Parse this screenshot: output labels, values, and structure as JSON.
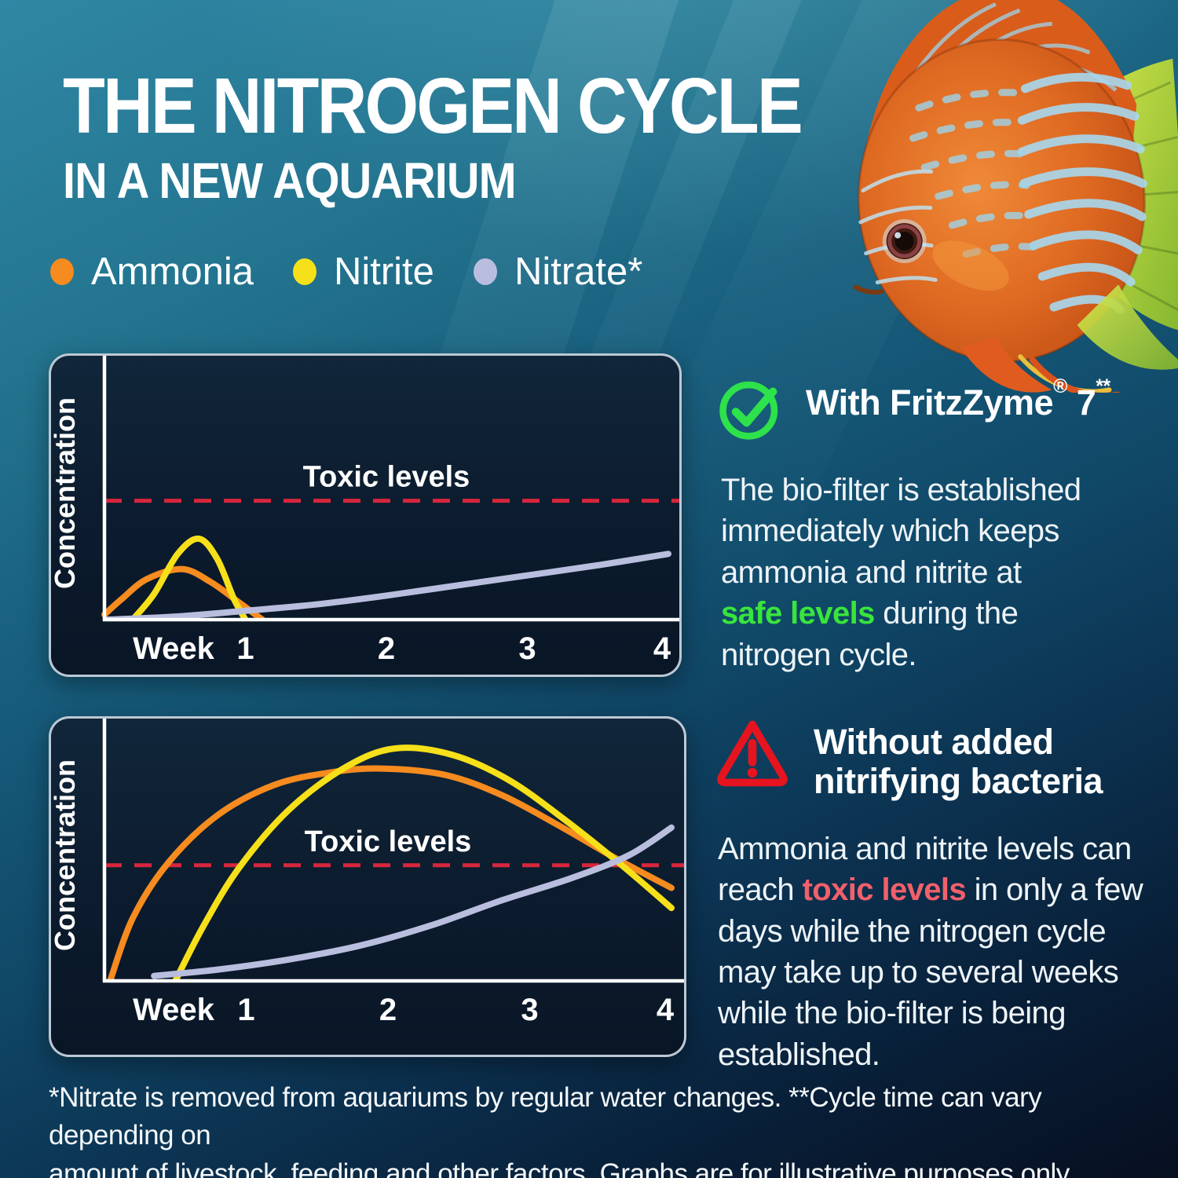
{
  "title": {
    "line1": "THE NITROGEN CYCLE",
    "line2": "IN A NEW AQUARIUM"
  },
  "legend": [
    {
      "label": "Ammonia",
      "color": "#f68b1f"
    },
    {
      "label": "Nitrite",
      "color": "#f6e01a"
    },
    {
      "label": "Nitrate*",
      "color": "#b9bede"
    }
  ],
  "colors": {
    "toxic_line": "#d7263d",
    "safe_green": "#39e53c",
    "icon_green": "#2de24a",
    "icon_red": "#e6141f",
    "toxic_text_red": "#f2606a",
    "axis_white": "#ffffff"
  },
  "chart_data": [
    {
      "type": "line",
      "title": "",
      "xlabel": "Week",
      "ylabel": "Concentration",
      "x_ticks": [
        "1",
        "2",
        "3",
        "4"
      ],
      "x_range": [
        0,
        4
      ],
      "grid": false,
      "toxic_label": "Toxic levels",
      "toxic_level": 0.47,
      "series": [
        {
          "name": "Ammonia",
          "color": "#f68b1f",
          "points": [
            [
              0,
              0.02
            ],
            [
              0.12,
              0.08
            ],
            [
              0.3,
              0.16
            ],
            [
              0.55,
              0.2
            ],
            [
              0.75,
              0.15
            ],
            [
              0.95,
              0.07
            ],
            [
              1.12,
              0
            ]
          ]
        },
        {
          "name": "Nitrite",
          "color": "#f6e01a",
          "points": [
            [
              0.2,
              0
            ],
            [
              0.35,
              0.1
            ],
            [
              0.52,
              0.26
            ],
            [
              0.67,
              0.32
            ],
            [
              0.8,
              0.24
            ],
            [
              0.92,
              0.08
            ],
            [
              1.0,
              0
            ]
          ]
        },
        {
          "name": "Nitrate",
          "color": "#b9bede",
          "points": [
            [
              0.02,
              0
            ],
            [
              0.5,
              0.012
            ],
            [
              1,
              0.035
            ],
            [
              1.5,
              0.06
            ],
            [
              2,
              0.095
            ],
            [
              2.5,
              0.135
            ],
            [
              3,
              0.175
            ],
            [
              3.5,
              0.215
            ],
            [
              4,
              0.26
            ]
          ]
        }
      ]
    },
    {
      "type": "line",
      "title": "",
      "xlabel": "Week",
      "ylabel": "Concentration",
      "x_ticks": [
        "1",
        "2",
        "3",
        "4"
      ],
      "x_range": [
        0,
        4
      ],
      "grid": false,
      "toxic_label": "Toxic levels",
      "toxic_level": 0.46,
      "series": [
        {
          "name": "Ammonia",
          "color": "#f68b1f",
          "points": [
            [
              0.04,
              0
            ],
            [
              0.2,
              0.25
            ],
            [
              0.45,
              0.47
            ],
            [
              0.8,
              0.66
            ],
            [
              1.2,
              0.78
            ],
            [
              1.6,
              0.83
            ],
            [
              1.95,
              0.845
            ],
            [
              2.4,
              0.82
            ],
            [
              2.8,
              0.74
            ],
            [
              3.2,
              0.62
            ],
            [
              3.6,
              0.49
            ],
            [
              4,
              0.37
            ]
          ]
        },
        {
          "name": "Nitrite",
          "color": "#f6e01a",
          "points": [
            [
              0.5,
              0
            ],
            [
              0.7,
              0.22
            ],
            [
              0.95,
              0.45
            ],
            [
              1.3,
              0.68
            ],
            [
              1.7,
              0.85
            ],
            [
              2.05,
              0.925
            ],
            [
              2.45,
              0.9
            ],
            [
              2.85,
              0.8
            ],
            [
              3.25,
              0.64
            ],
            [
              3.65,
              0.46
            ],
            [
              4,
              0.29
            ]
          ]
        },
        {
          "name": "Nitrate",
          "color": "#b9bede",
          "points": [
            [
              0.35,
              0.02
            ],
            [
              0.8,
              0.045
            ],
            [
              1.3,
              0.085
            ],
            [
              1.8,
              0.14
            ],
            [
              2.3,
              0.22
            ],
            [
              2.8,
              0.32
            ],
            [
              3.3,
              0.41
            ],
            [
              3.7,
              0.5
            ],
            [
              4,
              0.61
            ]
          ]
        }
      ]
    }
  ],
  "sections": {
    "with": {
      "icon": "check-circle-icon",
      "heading_segments": [
        {
          "text": "With FritzZyme"
        },
        {
          "text": "®",
          "sup": true
        },
        {
          "text": " 7"
        },
        {
          "text": "**",
          "sup": true
        }
      ],
      "body_segments": [
        {
          "text": "The bio-filter is established\nimmediately which keeps\nammonia and nitrite at\n"
        },
        {
          "text": "safe levels",
          "color": "#39e53c",
          "bold": true
        },
        {
          "text": " during the\nnitrogen cycle."
        }
      ]
    },
    "without": {
      "icon": "warning-triangle-icon",
      "heading": "Without added\nnitrifying bacteria",
      "body_segments": [
        {
          "text": "Ammonia and nitrite levels can\nreach "
        },
        {
          "text": "toxic levels",
          "color": "#f2606a",
          "bold": true
        },
        {
          "text": " in only a few\ndays while the nitrogen cycle\nmay take up to several weeks\nwhile the bio-filter is being\nestablished."
        }
      ]
    }
  },
  "footnote": {
    "line1": "*Nitrate is removed from aquariums by regular water changes. **Cycle time can vary depending on",
    "line2": "amount of livestock, feeding and other factors. Graphs are for illustrative purposes only."
  }
}
